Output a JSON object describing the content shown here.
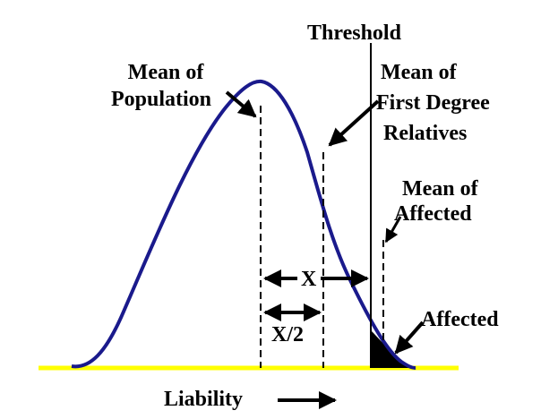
{
  "diagram": {
    "threshold_label": "Threshold",
    "mean_population_label": [
      "Mean of",
      "Population"
    ],
    "mean_relatives_label": [
      "Mean of",
      "First Degree",
      "Relatives"
    ],
    "mean_affected_label": [
      "Mean of",
      "Affected"
    ],
    "x_label": "X",
    "x_half_label": "X/2",
    "affected_label": "Affected",
    "axis_label": "Liability",
    "colors": {
      "curve": "#1a1a8c",
      "baseline": "#ffff00",
      "text": "#000000"
    }
  }
}
